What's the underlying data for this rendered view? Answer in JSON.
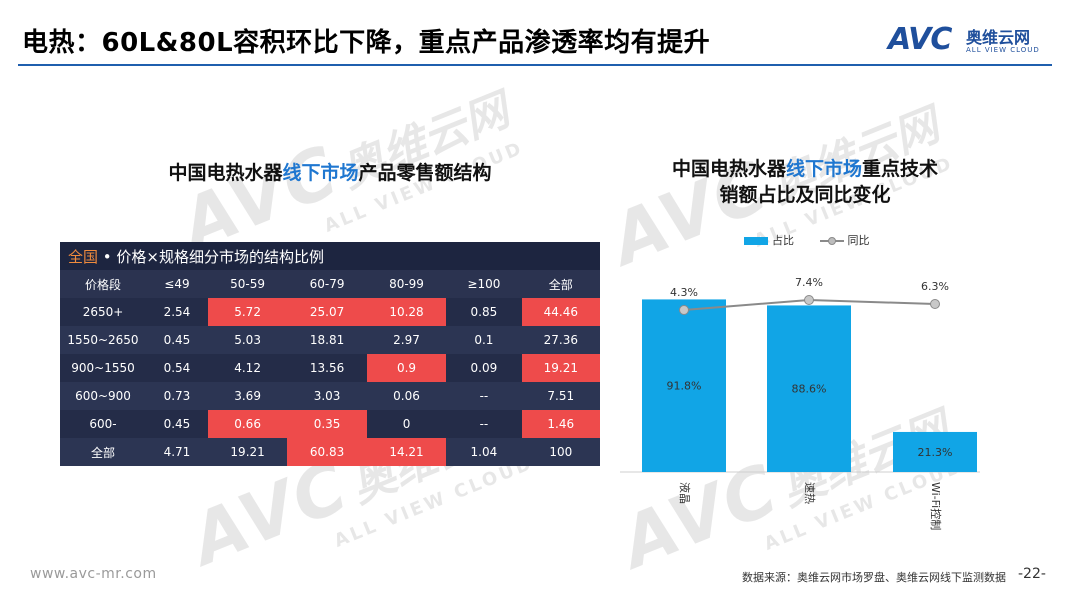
{
  "header": {
    "title": "电热：60L&80L容积环比下降，重点产品渗透率均有提升",
    "logo_avc": "AVC",
    "logo_cn": "奥维云网",
    "logo_en": "ALL VIEW CLOUD"
  },
  "watermark": {
    "avc": "AVC",
    "cn": "奥维云网",
    "en": "ALL VIEW CLOUD"
  },
  "left_panel": {
    "title_pre": "中国电热水器",
    "title_hl": "线下市场",
    "title_post": "产品零售额结构",
    "table": {
      "caption_prefix": "全国",
      "caption_text": " • 价格×规格细分市场的结构比例",
      "headers": [
        "价格段",
        "≤49",
        "50-59",
        "60-79",
        "80-99",
        "≥100",
        "全部"
      ],
      "rows": [
        [
          "2650+",
          "2.54",
          "5.72",
          "25.07",
          "10.28",
          "0.85",
          "44.46"
        ],
        [
          "1550~2650",
          "0.45",
          "5.03",
          "18.81",
          "2.97",
          "0.1",
          "27.36"
        ],
        [
          "900~1550",
          "0.54",
          "4.12",
          "13.56",
          "0.9",
          "0.09",
          "19.21"
        ],
        [
          "600~900",
          "0.73",
          "3.69",
          "3.03",
          "0.06",
          "--",
          "7.51"
        ],
        [
          "600-",
          "0.45",
          "0.66",
          "0.35",
          "0",
          "--",
          "1.46"
        ],
        [
          "全部",
          "4.71",
          "19.21",
          "60.83",
          "14.21",
          "1.04",
          "100"
        ]
      ],
      "highlight_color": "#ee4b4b"
    }
  },
  "right_panel": {
    "title_pre": "中国电热水器",
    "title_hl": "线下市场",
    "title_post": "重点技术",
    "title_line2": "销额占比及同比变化"
  },
  "chart_data": {
    "type": "bar",
    "categories": [
      "液晶",
      "速热",
      "Wi-Fi控制"
    ],
    "series": [
      {
        "name": "占比",
        "kind": "bar",
        "color": "#11a5e6",
        "values": [
          91.8,
          88.6,
          21.3
        ],
        "labels": [
          "91.8%",
          "88.6%",
          "21.3%"
        ]
      },
      {
        "name": "同比",
        "kind": "line",
        "color": "#8a8a8a",
        "values": [
          4.3,
          7.4,
          6.3
        ],
        "labels": [
          "4.3%",
          "7.4%",
          "6.3%"
        ]
      }
    ],
    "legend_position": "top",
    "grid": false
  },
  "footer": {
    "url": "www.avc-mr.com",
    "source": "数据来源：奥维云网市场罗盘、奥维云网线下监测数据",
    "page": "-22-"
  }
}
